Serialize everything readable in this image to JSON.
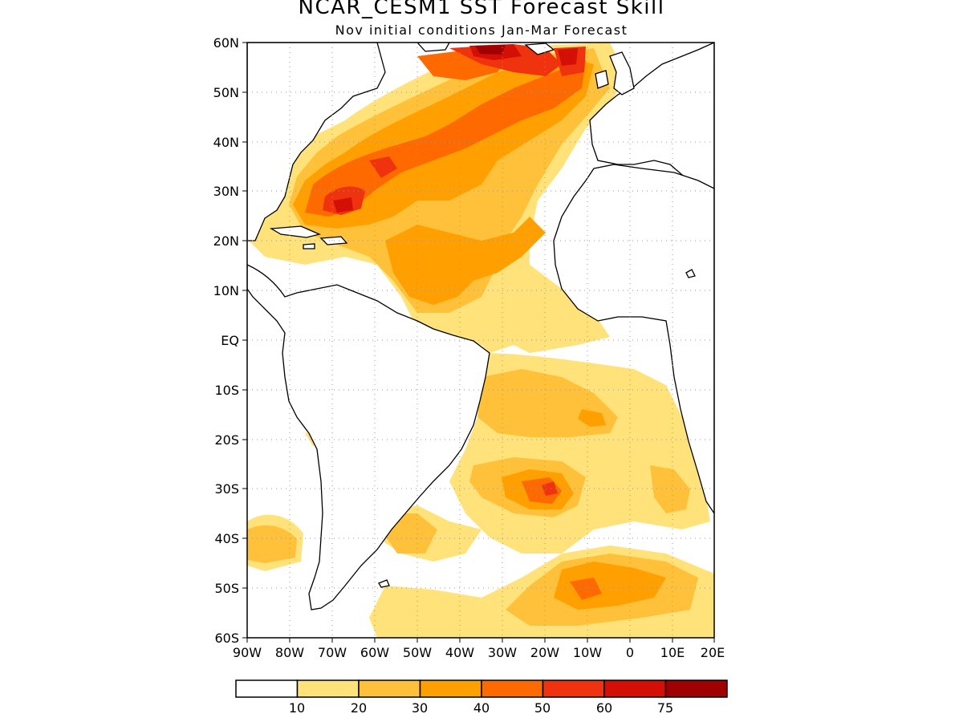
{
  "title": "NCAR_CESM1  SST Forecast Skill",
  "subtitle": "Nov initial conditions  Jan-Mar Forecast",
  "map": {
    "lat_labels": [
      "60N",
      "50N",
      "40N",
      "30N",
      "20N",
      "10N",
      "EQ",
      "10S",
      "20S",
      "30S",
      "40S",
      "50S",
      "60S"
    ],
    "lon_labels": [
      "90W",
      "80W",
      "70W",
      "60W",
      "50W",
      "40W",
      "30W",
      "20W",
      "10W",
      "0",
      "10E",
      "20E"
    ],
    "lat_range": [
      -60,
      60
    ],
    "lon_range": [
      -90,
      20
    ],
    "grid": "dotted"
  },
  "colorbar": {
    "tick_labels": [
      "10",
      "20",
      "30",
      "40",
      "50",
      "60",
      "75"
    ],
    "colors": [
      "#ffffff",
      "#ffe27a",
      "#ffc13a",
      "#ff9f00",
      "#ff6a00",
      "#f0330f",
      "#d40f06",
      "#a00000"
    ]
  }
}
